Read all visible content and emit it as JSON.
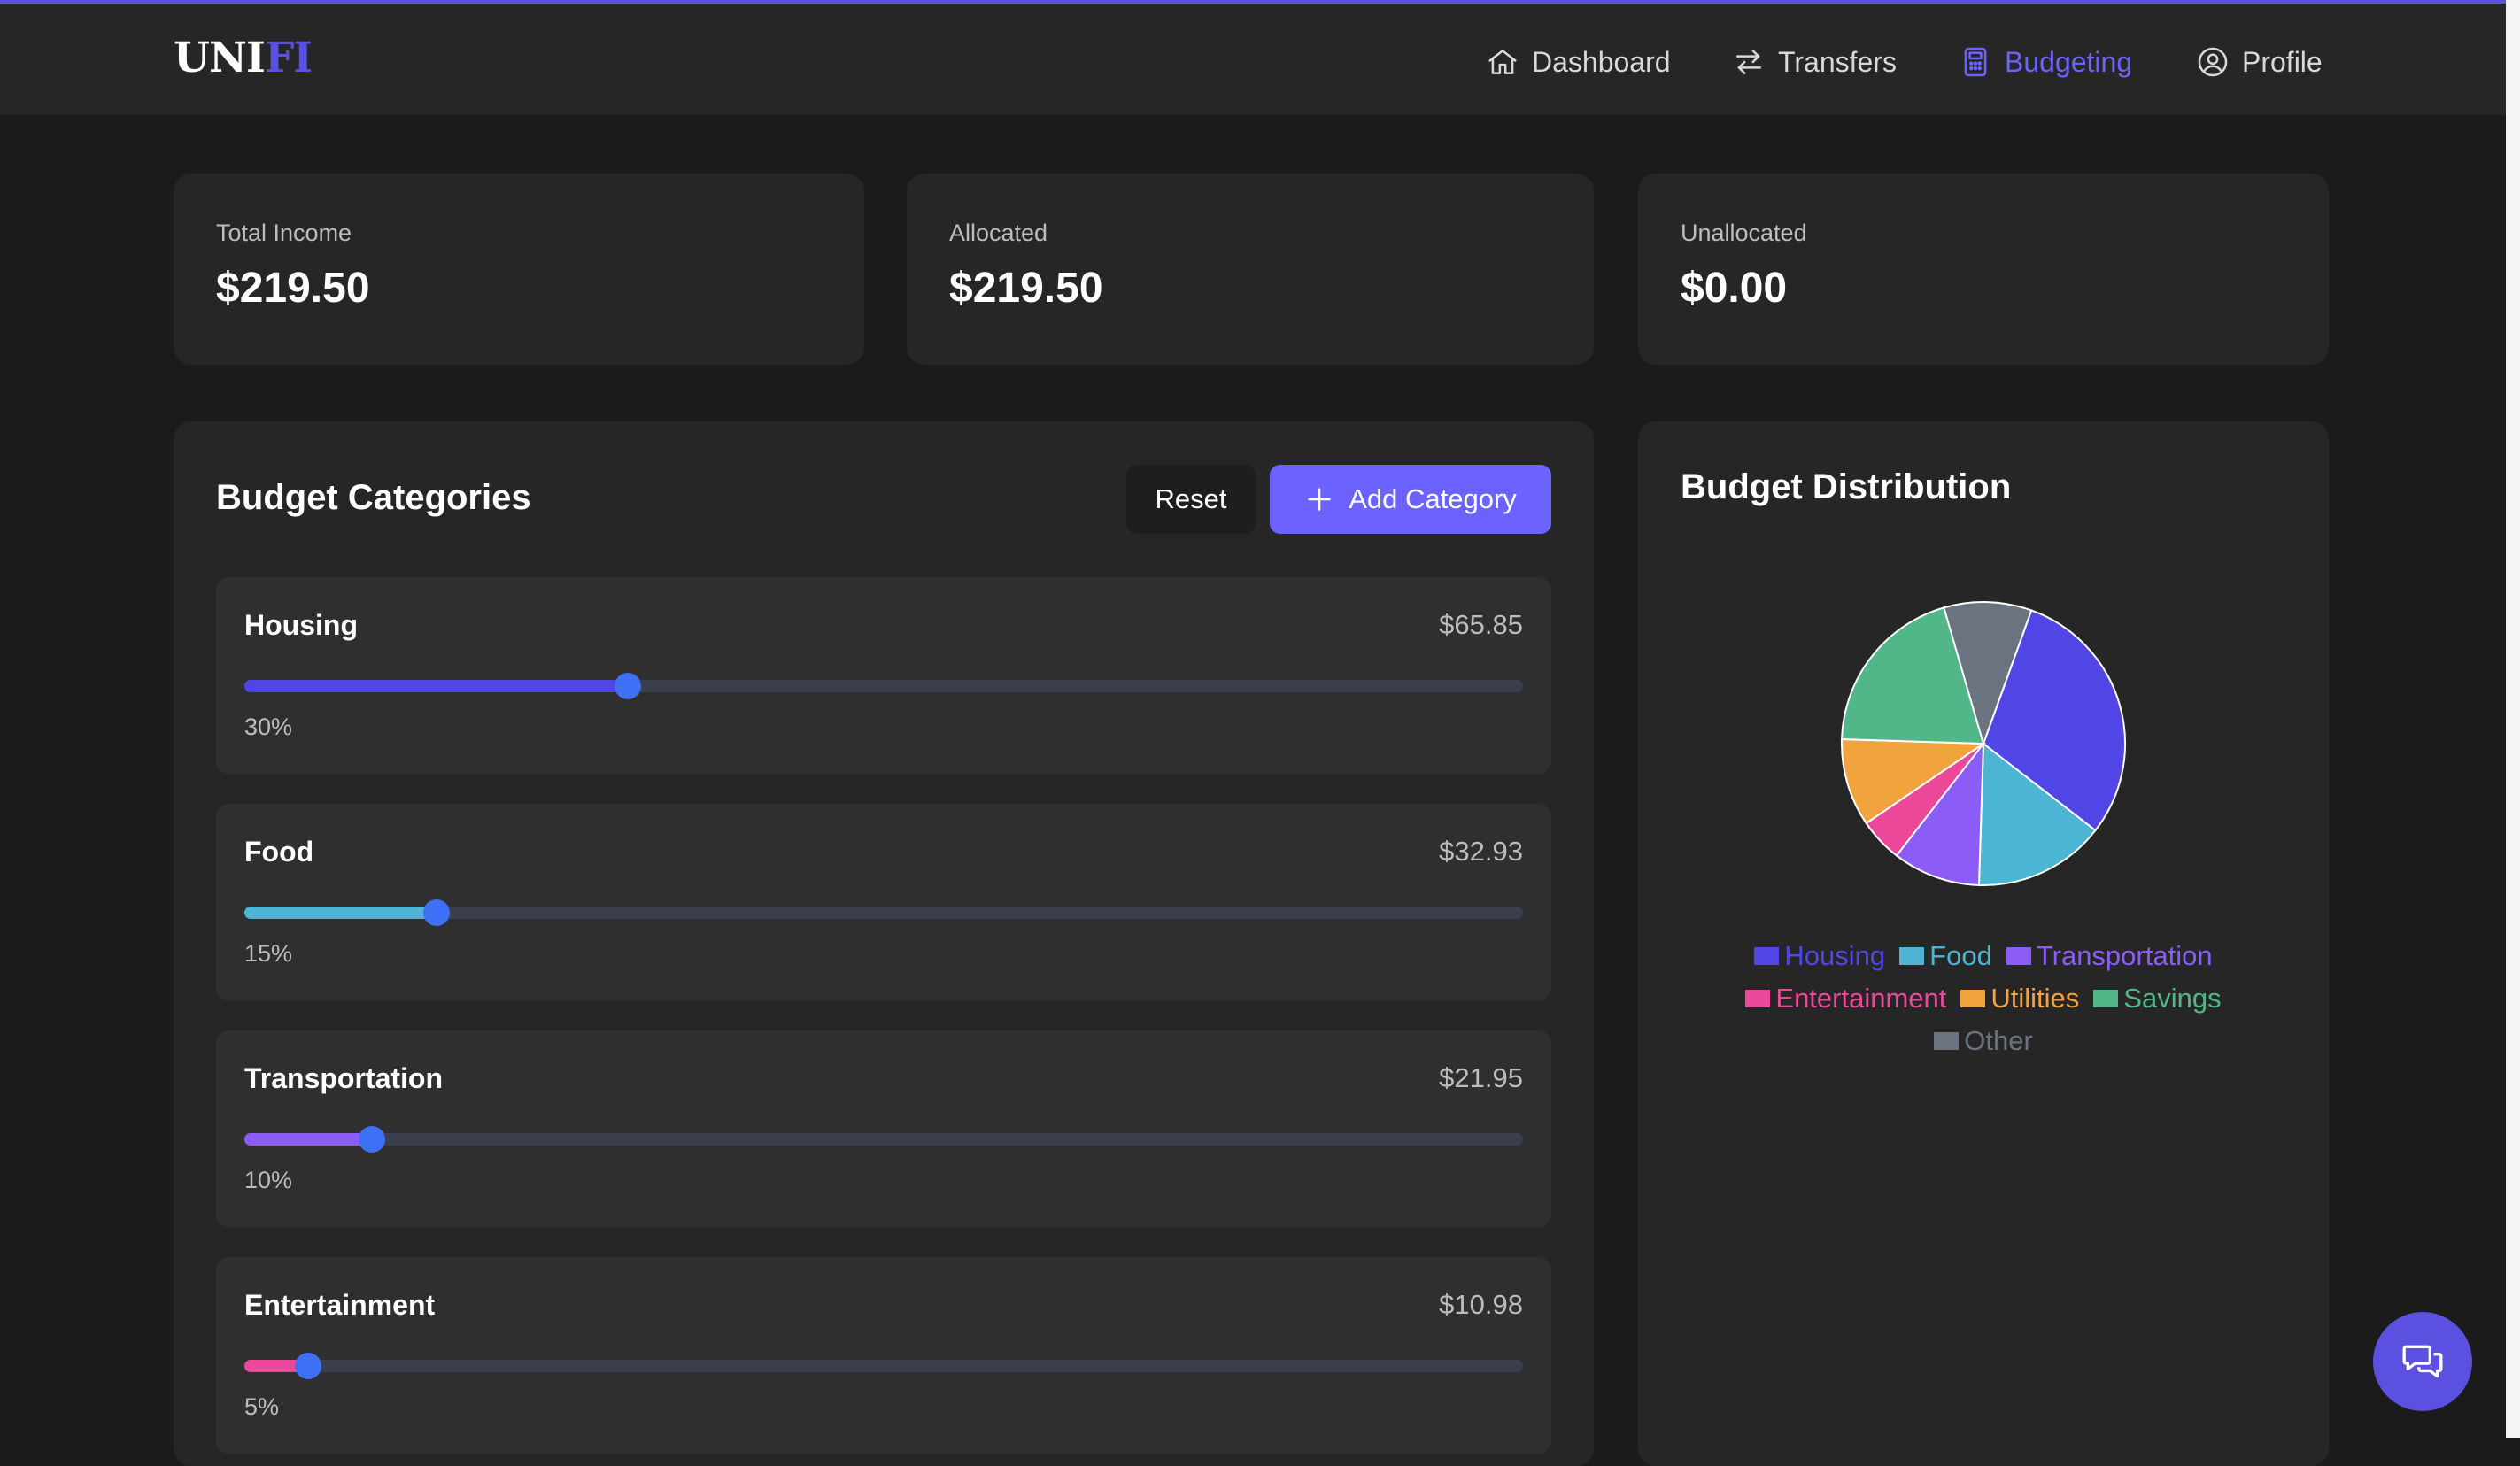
{
  "brand": {
    "part1": "UNI",
    "part2": "FI"
  },
  "nav": [
    {
      "label": "Dashboard",
      "icon": "home-icon",
      "active": false
    },
    {
      "label": "Transfers",
      "icon": "transfer-arrows-icon",
      "active": false
    },
    {
      "label": "Budgeting",
      "icon": "calculator-icon",
      "active": true
    },
    {
      "label": "Profile",
      "icon": "user-circle-icon",
      "active": false
    }
  ],
  "summary": {
    "income": {
      "label": "Total Income",
      "value": "$219.50"
    },
    "allocated": {
      "label": "Allocated",
      "value": "$219.50"
    },
    "unallocated": {
      "label": "Unallocated",
      "value": "$0.00"
    }
  },
  "categories_panel": {
    "title": "Budget Categories",
    "reset_label": "Reset",
    "add_label": "Add Category",
    "items": [
      {
        "name": "Housing",
        "amount": "$65.85",
        "percent_label": "30%",
        "percent": 30,
        "color": "#4f46e5"
      },
      {
        "name": "Food",
        "amount": "$32.93",
        "percent_label": "15%",
        "percent": 15,
        "color": "#4cb5d3"
      },
      {
        "name": "Transportation",
        "amount": "$21.95",
        "percent_label": "10%",
        "percent": 10,
        "color": "#8b5cf6"
      },
      {
        "name": "Entertainment",
        "amount": "$10.98",
        "percent_label": "5%",
        "percent": 5,
        "color": "#ec4899"
      }
    ]
  },
  "distribution": {
    "title": "Budget Distribution"
  },
  "chart_data": {
    "type": "pie",
    "categories": [
      "Housing",
      "Food",
      "Transportation",
      "Entertainment",
      "Utilities",
      "Savings",
      "Other"
    ],
    "values": [
      30,
      15,
      10,
      5,
      10,
      20,
      10
    ],
    "colors": [
      "#4f46e5",
      "#4cb5d3",
      "#8b5cf6",
      "#ec4899",
      "#f1a33d",
      "#52b788",
      "#6b7280"
    ],
    "legend_placement": "bottom",
    "title": ""
  },
  "colors": {
    "accent": "#6c63ff",
    "background": "#1b1b1b",
    "card": "#262626"
  },
  "chat_icon": "chat-bubbles-icon"
}
